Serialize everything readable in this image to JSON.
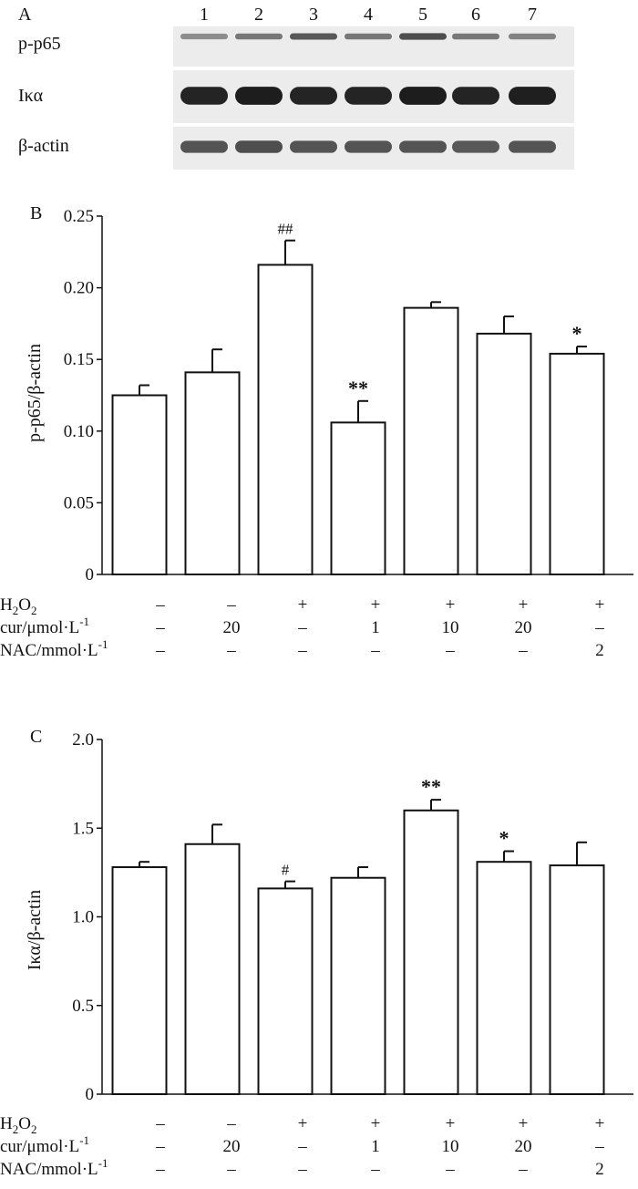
{
  "panel_a": {
    "label": "A",
    "lanes": [
      "1",
      "2",
      "3",
      "4",
      "5",
      "6",
      "7"
    ],
    "rows": [
      {
        "name": "p-p65",
        "intensity": [
          0.45,
          0.55,
          0.7,
          0.55,
          0.75,
          0.55,
          0.5
        ]
      },
      {
        "name": "Iκα",
        "intensity": [
          0.95,
          0.98,
          0.95,
          0.95,
          0.98,
          0.95,
          0.97
        ]
      },
      {
        "name": "β-actin",
        "intensity": [
          0.72,
          0.75,
          0.72,
          0.72,
          0.72,
          0.7,
          0.72
        ]
      }
    ]
  },
  "conditions": {
    "rows": [
      {
        "label_main": "H",
        "label_sub": "2",
        "label_tail": "O",
        "label_tail_sub": "2",
        "values": [
          "–",
          "–",
          "+",
          "+",
          "+",
          "+",
          "+"
        ]
      },
      {
        "label_main": "cur/μmol·L",
        "label_sup": "-1",
        "values": [
          "–",
          "20",
          "–",
          "1",
          "10",
          "20",
          "–"
        ]
      },
      {
        "label_main": "NAC/mmol·L",
        "label_sup": "-1",
        "values": [
          "–",
          "–",
          "–",
          "–",
          "–",
          "–",
          "2"
        ]
      }
    ]
  },
  "chart_data": [
    {
      "type": "bar",
      "panel": "B",
      "ylabel": "p-p65/β-actin",
      "ylim": [
        0,
        0.25
      ],
      "yticks": [
        "0",
        "0.05",
        "0.10",
        "0.15",
        "0.20",
        "0.25"
      ],
      "ytick_values": [
        0,
        0.05,
        0.1,
        0.15,
        0.2,
        0.25
      ],
      "categories": [
        "1",
        "2",
        "3",
        "4",
        "5",
        "6",
        "7"
      ],
      "values": [
        0.125,
        0.141,
        0.216,
        0.106,
        0.186,
        0.168,
        0.154
      ],
      "errors": [
        0.007,
        0.016,
        0.017,
        0.015,
        0.004,
        0.012,
        0.005
      ],
      "annotations": [
        "",
        "",
        "##",
        "**",
        "",
        "",
        "*"
      ]
    },
    {
      "type": "bar",
      "panel": "C",
      "ylabel": "Iκα/β-actin",
      "ylim": [
        0,
        2.0
      ],
      "yticks": [
        "0",
        "0.5",
        "1.0",
        "1.5",
        "2.0"
      ],
      "ytick_values": [
        0,
        0.5,
        1.0,
        1.5,
        2.0
      ],
      "categories": [
        "1",
        "2",
        "3",
        "4",
        "5",
        "6",
        "7"
      ],
      "values": [
        1.28,
        1.41,
        1.16,
        1.22,
        1.6,
        1.31,
        1.29
      ],
      "errors": [
        0.03,
        0.11,
        0.04,
        0.06,
        0.06,
        0.06,
        0.13
      ],
      "annotations": [
        "",
        "",
        "#",
        "",
        "**",
        "*",
        ""
      ]
    }
  ]
}
